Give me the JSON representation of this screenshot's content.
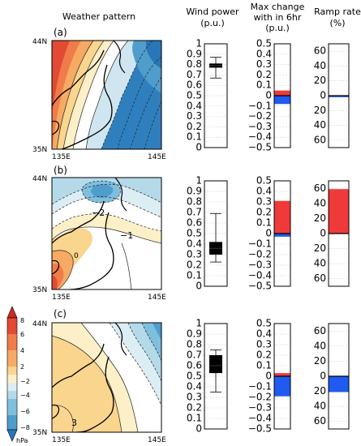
{
  "header": {
    "weather": "Weather pattern",
    "wind": [
      "Wind power",
      "(p.u.)"
    ],
    "maxchange": [
      "Max change",
      "with in 6hr",
      "(p.u.)"
    ],
    "ramp": [
      "Ramp rate",
      "(%)"
    ]
  },
  "map_labels": {
    "lat_top": "44N",
    "lat_bottom": "35N",
    "lon_left": "135E",
    "lon_right": "145E"
  },
  "colorbar": {
    "ticks": [
      "8",
      "6",
      "4",
      "2",
      "−2",
      "−4",
      "−6",
      "−8"
    ],
    "unit": "hPa",
    "colors": [
      "#cc2a1e",
      "#e24a33",
      "#f07c4a",
      "#f6aa64",
      "#fad58e",
      "#fdf0c8",
      "#dcedf4",
      "#b4daea",
      "#7fbfdd",
      "#4f9dcb",
      "#2877b8"
    ]
  },
  "colors": {
    "positive": "#f03a3a",
    "negative": "#1f5bef",
    "box": "#000000"
  },
  "panels": [
    {
      "label": "(a)",
      "contour_labels": []
    },
    {
      "label": "(b)",
      "contour_labels": [
        "−2",
        "−1",
        "0"
      ]
    },
    {
      "label": "(c)",
      "contour_labels": [
        "3"
      ]
    }
  ],
  "chart_data": [
    {
      "type": "box",
      "title": "Wind power",
      "ylabel": "p.u.",
      "ylim": [
        0,
        1
      ],
      "yticks": [
        "0",
        "0.1",
        "0.2",
        "0.3",
        "0.4",
        "0.5",
        "0.6",
        "0.7",
        "0.8",
        "0.9",
        "1"
      ],
      "boxes": [
        {
          "panel": "(a)",
          "whisker_low": 0.67,
          "q1": 0.77,
          "median": 0.79,
          "q3": 0.81,
          "whisker_high": 0.87
        },
        {
          "panel": "(b)",
          "whisker_low": 0.23,
          "q1": 0.3,
          "median": 0.36,
          "q3": 0.42,
          "whisker_high": 0.69
        },
        {
          "panel": "(c)",
          "whisker_low": 0.35,
          "q1": 0.53,
          "median": 0.6,
          "q3": 0.7,
          "whisker_high": 0.75
        }
      ]
    },
    {
      "type": "bar",
      "title": "Max change with in 6hr",
      "ylabel": "p.u.",
      "ylim": [
        -0.5,
        0.5
      ],
      "yticks": [
        "0.5",
        "0.4",
        "0.3",
        "0.2",
        "0.1",
        "0",
        "−0.1",
        "−0.2",
        "−0.3",
        "−0.4",
        "−0.5"
      ],
      "series": [
        {
          "name": "",
          "values": [
            0.05,
            0.31,
            0.03
          ]
        },
        {
          "name": "",
          "values": [
            -0.08,
            -0.03,
            -0.19
          ]
        }
      ],
      "categories": [
        "(a)",
        "(b)",
        "(c)"
      ]
    },
    {
      "type": "bar",
      "title": "Ramp rate",
      "ylabel": "%",
      "ylim": [
        -70,
        70
      ],
      "yticks": [
        "60",
        "40",
        "20",
        "0",
        "20",
        "40",
        "60"
      ],
      "values": [
        -2,
        59,
        -21
      ],
      "categories": [
        "(a)",
        "(b)",
        "(c)"
      ]
    }
  ]
}
